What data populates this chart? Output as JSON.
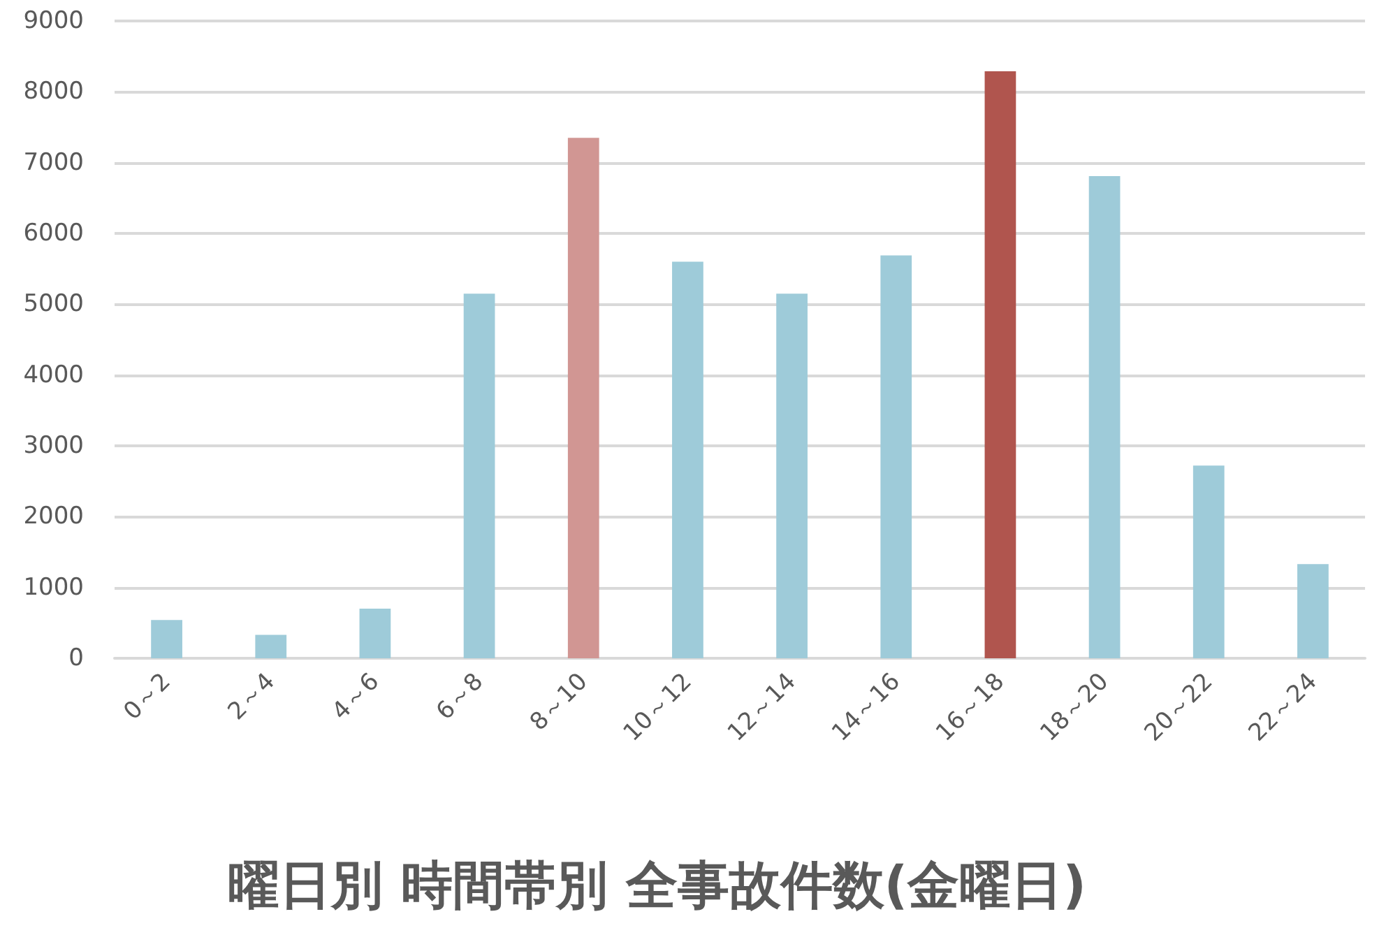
{
  "chart_data": {
    "type": "bar",
    "title": "曜日別 時間帯別 全事故件数(金曜日)",
    "categories": [
      "0～2",
      "2～4",
      "4～6",
      "6～8",
      "8～10",
      "10～12",
      "12～14",
      "14～16",
      "16～18",
      "18～20",
      "20～22",
      "22～24"
    ],
    "values": [
      540,
      330,
      700,
      5150,
      7350,
      5600,
      5150,
      5690,
      8290,
      6810,
      2720,
      1330
    ],
    "colors": [
      "#9ecbd9",
      "#9ecbd9",
      "#9ecbd9",
      "#9ecbd9",
      "#d19693",
      "#9ecbd9",
      "#9ecbd9",
      "#9ecbd9",
      "#b0554e",
      "#9ecbd9",
      "#9ecbd9",
      "#9ecbd9"
    ],
    "ylim": [
      0,
      9000
    ],
    "yticks": [
      0,
      1000,
      2000,
      3000,
      4000,
      5000,
      6000,
      7000,
      8000,
      9000
    ],
    "grid": "y"
  }
}
